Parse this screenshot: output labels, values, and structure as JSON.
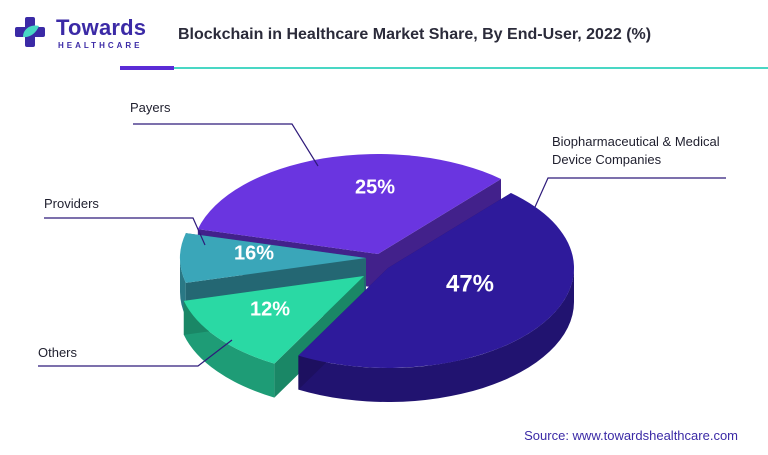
{
  "brand": {
    "name": "Towards",
    "subtitle": "HEALTHCARE",
    "colors": {
      "primary": "#3b2aa6",
      "accent": "#49d7c4"
    }
  },
  "header": {
    "title": "Blockchain in Healthcare Market Share, By End-User, 2022 (%)"
  },
  "chart_data": {
    "type": "pie",
    "title": "Blockchain in Healthcare Market Share, By End-User, 2022 (%)",
    "style": "3d-exploded",
    "unit": "%",
    "slices": [
      {
        "label": "Biopharmaceutical & Medical Device Companies",
        "value": 47,
        "display": "47%",
        "color": "#2e1a9b"
      },
      {
        "label": "Payers",
        "value": 25,
        "display": "25%",
        "color": "#6a35e0"
      },
      {
        "label": "Providers",
        "value": 16,
        "display": "16%",
        "color": "#3aa6b9"
      },
      {
        "label": "Others",
        "value": 12,
        "display": "12%",
        "color": "#2ad9a4"
      }
    ]
  },
  "footer": {
    "source": "Source: www.towardshealthcare.com"
  }
}
